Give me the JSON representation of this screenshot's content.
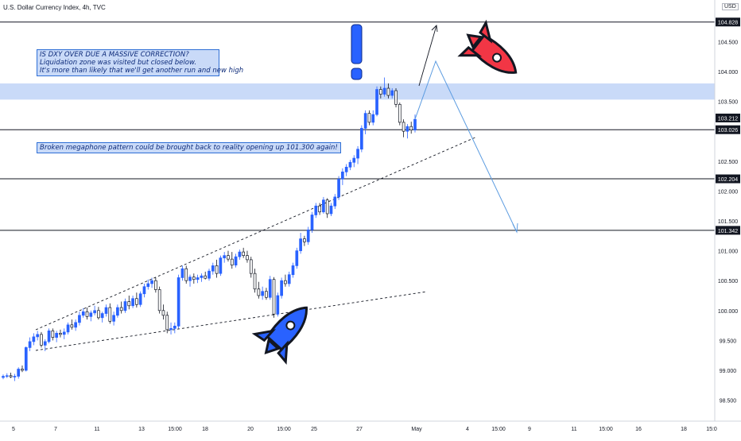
{
  "chart": {
    "title": "U.S. Dollar Currency Index, 4h, TVC",
    "currency": "USD"
  },
  "annotations": {
    "note_1": {
      "line_1": "IS DXY OVER DUE A MASSIVE CORRECTION?",
      "line_2": "Liquidation zone was visited but closed below.",
      "line_3": "It's more than likely that we'll get another run and new high"
    },
    "note_2": "Broken megaphone pattern could be brought back to reality opening up 101.300 again!"
  },
  "colors": {
    "up_candle": "#2962ff",
    "down_candle": "#131722",
    "zone": "#c9daf8",
    "forecast": "#5b9be0",
    "rocket_up": "#2962ff",
    "rocket_down": "#f23645",
    "exclamation": "#2962ff"
  },
  "chart_data": {
    "type": "candlestick",
    "y_axis": {
      "ticks": [
        "98.500",
        "99.000",
        "99.500",
        "100.000",
        "100.500",
        "101.000",
        "101.500",
        "102.000",
        "102.500",
        "103.000",
        "103.500",
        "104.000",
        "104.500"
      ],
      "range": [
        98.35,
        105.0
      ]
    },
    "x_axis": {
      "ticks": [
        "5",
        "7",
        "11",
        "13",
        "15:00",
        "18",
        "20",
        "15:00",
        "25",
        "27",
        "May",
        "4",
        "15:00",
        "9",
        "11",
        "15:00",
        "16",
        "18",
        "15:0"
      ]
    },
    "horizontal_levels": [
      {
        "value": 104.828,
        "label": "104.828"
      },
      {
        "value": 103.026,
        "label": "103.026"
      },
      {
        "value": 102.204,
        "label": "102.204"
      },
      {
        "value": 101.342,
        "label": "101.342"
      }
    ],
    "last_price_label": "103.212",
    "liquidation_zone": {
      "from": 103.53,
      "to": 103.8
    },
    "candles_ohlc": [
      [
        98.88,
        98.93,
        98.85,
        98.9
      ],
      [
        98.9,
        98.95,
        98.87,
        98.91
      ],
      [
        98.91,
        98.96,
        98.87,
        98.89
      ],
      [
        98.89,
        98.94,
        98.82,
        98.9
      ],
      [
        98.9,
        99.05,
        98.86,
        99.02
      ],
      [
        99.02,
        99.08,
        98.97,
        99.0
      ],
      [
        99.0,
        99.4,
        98.98,
        99.38
      ],
      [
        99.38,
        99.55,
        99.32,
        99.48
      ],
      [
        99.48,
        99.62,
        99.42,
        99.56
      ],
      [
        99.56,
        99.66,
        99.5,
        99.6
      ],
      [
        99.6,
        99.64,
        99.38,
        99.42
      ],
      [
        99.42,
        99.52,
        99.32,
        99.48
      ],
      [
        99.48,
        99.7,
        99.45,
        99.66
      ],
      [
        99.66,
        99.7,
        99.5,
        99.55
      ],
      [
        99.55,
        99.66,
        99.47,
        99.62
      ],
      [
        99.62,
        99.68,
        99.55,
        99.6
      ],
      [
        99.6,
        99.7,
        99.52,
        99.64
      ],
      [
        99.64,
        99.8,
        99.6,
        99.76
      ],
      [
        99.76,
        99.85,
        99.68,
        99.72
      ],
      [
        99.72,
        99.85,
        99.66,
        99.8
      ],
      [
        99.8,
        99.98,
        99.75,
        99.92
      ],
      [
        99.92,
        100.04,
        99.88,
        99.98
      ],
      [
        99.98,
        100.05,
        99.85,
        99.9
      ],
      [
        99.9,
        100.0,
        99.82,
        99.96
      ],
      [
        99.96,
        100.08,
        99.92,
        100.0
      ],
      [
        100.0,
        100.06,
        99.85,
        99.88
      ],
      [
        99.88,
        99.98,
        99.8,
        99.95
      ],
      [
        99.95,
        100.1,
        99.9,
        100.05
      ],
      [
        100.05,
        100.12,
        99.78,
        99.82
      ],
      [
        99.82,
        99.98,
        99.75,
        99.92
      ],
      [
        99.92,
        100.1,
        99.88,
        100.05
      ],
      [
        100.05,
        100.15,
        99.95,
        100.0
      ],
      [
        100.0,
        100.2,
        99.96,
        100.15
      ],
      [
        100.15,
        100.25,
        100.02,
        100.08
      ],
      [
        100.08,
        100.25,
        100.04,
        100.2
      ],
      [
        100.2,
        100.3,
        100.05,
        100.1
      ],
      [
        100.1,
        100.32,
        100.06,
        100.28
      ],
      [
        100.28,
        100.45,
        100.22,
        100.4
      ],
      [
        100.4,
        100.52,
        100.35,
        100.45
      ],
      [
        100.45,
        100.55,
        100.38,
        100.5
      ],
      [
        100.5,
        100.55,
        100.3,
        100.35
      ],
      [
        100.35,
        100.4,
        99.95,
        100.0
      ],
      [
        100.0,
        100.1,
        99.85,
        99.92
      ],
      [
        99.92,
        99.98,
        99.62,
        99.68
      ],
      [
        99.68,
        99.8,
        99.6,
        99.7
      ],
      [
        99.7,
        99.8,
        99.62,
        99.74
      ],
      [
        99.74,
        100.6,
        99.7,
        100.55
      ],
      [
        100.55,
        100.75,
        100.5,
        100.7
      ],
      [
        100.7,
        100.75,
        100.45,
        100.5
      ],
      [
        100.5,
        100.6,
        100.4,
        100.56
      ],
      [
        100.56,
        100.62,
        100.45,
        100.52
      ],
      [
        100.52,
        100.6,
        100.46,
        100.55
      ],
      [
        100.55,
        100.62,
        100.48,
        100.58
      ],
      [
        100.58,
        100.65,
        100.52,
        100.54
      ],
      [
        100.54,
        100.7,
        100.5,
        100.66
      ],
      [
        100.66,
        100.8,
        100.6,
        100.75
      ],
      [
        100.75,
        100.85,
        100.55,
        100.62
      ],
      [
        100.62,
        100.92,
        100.58,
        100.88
      ],
      [
        100.88,
        100.98,
        100.8,
        100.92
      ],
      [
        100.92,
        101.0,
        100.82,
        100.86
      ],
      [
        100.86,
        100.98,
        100.7,
        100.76
      ],
      [
        100.76,
        100.95,
        100.72,
        100.9
      ],
      [
        100.9,
        101.02,
        100.85,
        100.98
      ],
      [
        100.98,
        101.05,
        100.88,
        100.92
      ],
      [
        100.92,
        101.0,
        100.8,
        100.85
      ],
      [
        100.85,
        100.9,
        100.55,
        100.62
      ],
      [
        100.62,
        100.7,
        100.3,
        100.36
      ],
      [
        100.36,
        100.48,
        100.2,
        100.25
      ],
      [
        100.25,
        100.4,
        100.18,
        100.32
      ],
      [
        100.32,
        100.38,
        100.18,
        100.22
      ],
      [
        100.22,
        100.58,
        100.18,
        100.52
      ],
      [
        100.52,
        100.56,
        99.88,
        99.94
      ],
      [
        99.94,
        100.3,
        99.9,
        100.25
      ],
      [
        100.25,
        100.55,
        100.2,
        100.5
      ],
      [
        100.5,
        100.6,
        100.4,
        100.45
      ],
      [
        100.45,
        100.65,
        100.4,
        100.6
      ],
      [
        100.6,
        100.8,
        100.55,
        100.75
      ],
      [
        100.75,
        101.05,
        100.7,
        101.0
      ],
      [
        101.0,
        101.3,
        100.95,
        101.2
      ],
      [
        101.2,
        101.25,
        101.08,
        101.15
      ],
      [
        101.15,
        101.4,
        101.1,
        101.35
      ],
      [
        101.35,
        101.65,
        101.3,
        101.6
      ],
      [
        101.6,
        101.8,
        101.55,
        101.75
      ],
      [
        101.75,
        101.8,
        101.6,
        101.65
      ],
      [
        101.65,
        101.9,
        101.62,
        101.85
      ],
      [
        101.85,
        101.88,
        101.55,
        101.62
      ],
      [
        101.62,
        101.8,
        101.58,
        101.75
      ],
      [
        101.75,
        101.95,
        101.7,
        101.9
      ],
      [
        101.9,
        102.25,
        101.85,
        102.2
      ],
      [
        102.2,
        102.38,
        102.1,
        102.32
      ],
      [
        102.32,
        102.45,
        102.25,
        102.4
      ],
      [
        102.4,
        102.52,
        102.35,
        102.48
      ],
      [
        102.48,
        102.6,
        102.4,
        102.55
      ],
      [
        102.55,
        102.75,
        102.45,
        102.7
      ],
      [
        102.7,
        103.1,
        102.65,
        103.05
      ],
      [
        103.05,
        103.35,
        102.95,
        103.3
      ],
      [
        103.3,
        103.35,
        103.1,
        103.15
      ],
      [
        103.15,
        103.35,
        103.1,
        103.28
      ],
      [
        103.28,
        103.75,
        103.25,
        103.7
      ],
      [
        103.7,
        103.75,
        103.55,
        103.62
      ],
      [
        103.62,
        103.9,
        103.58,
        103.72
      ],
      [
        103.72,
        103.8,
        103.55,
        103.6
      ],
      [
        103.6,
        103.72,
        103.55,
        103.68
      ],
      [
        103.68,
        103.72,
        103.4,
        103.45
      ],
      [
        103.45,
        103.48,
        103.1,
        103.15
      ],
      [
        103.15,
        103.2,
        102.9,
        103.0
      ],
      [
        103.0,
        103.12,
        102.88,
        103.08
      ],
      [
        103.08,
        103.16,
        102.96,
        103.02
      ],
      [
        103.02,
        103.28,
        102.98,
        103.2
      ]
    ]
  }
}
